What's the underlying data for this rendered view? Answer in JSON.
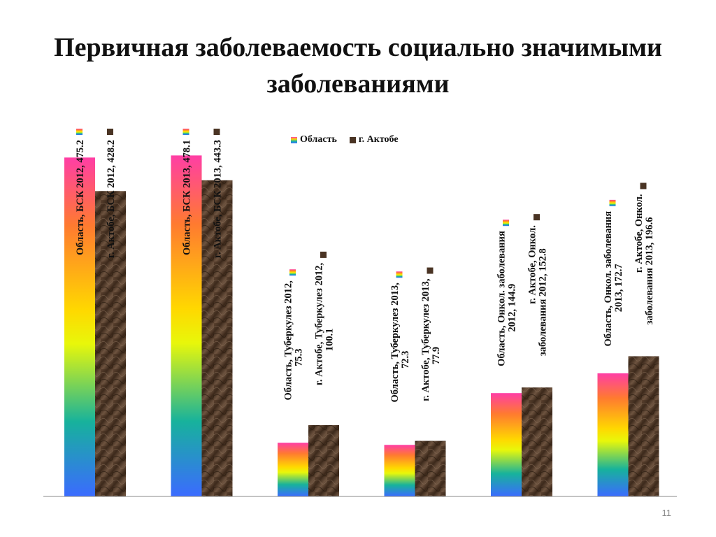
{
  "slide": {
    "title": "Первичная заболеваемость социально значимыми заболеваниями",
    "page_number": "11"
  },
  "legend": {
    "items": [
      {
        "label": "Область",
        "swatch": "rainbow-gradient"
      },
      {
        "label": "г. Актобе",
        "swatch": "brown-marble"
      }
    ]
  },
  "colors": {
    "region_gradient": [
      "#ff3ea5",
      "#ff7a30",
      "#ffd800",
      "#e8f70a",
      "#17b29c",
      "#3b6bff"
    ],
    "city": "#4a3424",
    "axis": "#888888",
    "page_number": "#8a8a8a"
  },
  "chart_data": {
    "type": "bar",
    "categories": [
      "БСК 2012",
      "БСК 2013",
      "Туберкулез 2012",
      "Туберкулез 2013",
      "Онкол. заболевания 2012",
      "Онкол. заболевания 2013"
    ],
    "series": [
      {
        "name": "Область",
        "values": [
          475.2,
          478.1,
          75.3,
          72.3,
          144.9,
          172.7
        ]
      },
      {
        "name": "г. Актобе",
        "values": [
          428.2,
          443.3,
          100.1,
          77.9,
          152.8,
          196.6
        ]
      }
    ],
    "data_labels": [
      [
        [
          "Область, БСК 2012, 475.2"
        ],
        [
          "Область, БСК 2013, 478.1"
        ],
        [
          "Область,  Туберкулез 2012,",
          "75.3"
        ],
        [
          "Область,  Туберкулез 2013,",
          "72.3"
        ],
        [
          "Область, Онкол. заболевания",
          "2012, 144.9"
        ],
        [
          "Область, Онкол. заболевания",
          "2013, 172.7"
        ]
      ],
      [
        [
          "г. Актобе, БСК 2012, 428.2"
        ],
        [
          "г. Актобе, БСК 2013, 443.3"
        ],
        [
          "г. Актобе,  Туберкулез 2012,",
          "100.1"
        ],
        [
          "г. Актобе,  Туберкулез 2013,",
          "77.9"
        ],
        [
          "г. Актобе, Онкол.",
          "заболевания 2012, 152.8"
        ],
        [
          "г. Актобе, Онкол.",
          "заболевания 2013, 196.6"
        ]
      ]
    ],
    "ylim": [
      0,
      500
    ],
    "grid": false,
    "legend_position": "top-center"
  }
}
